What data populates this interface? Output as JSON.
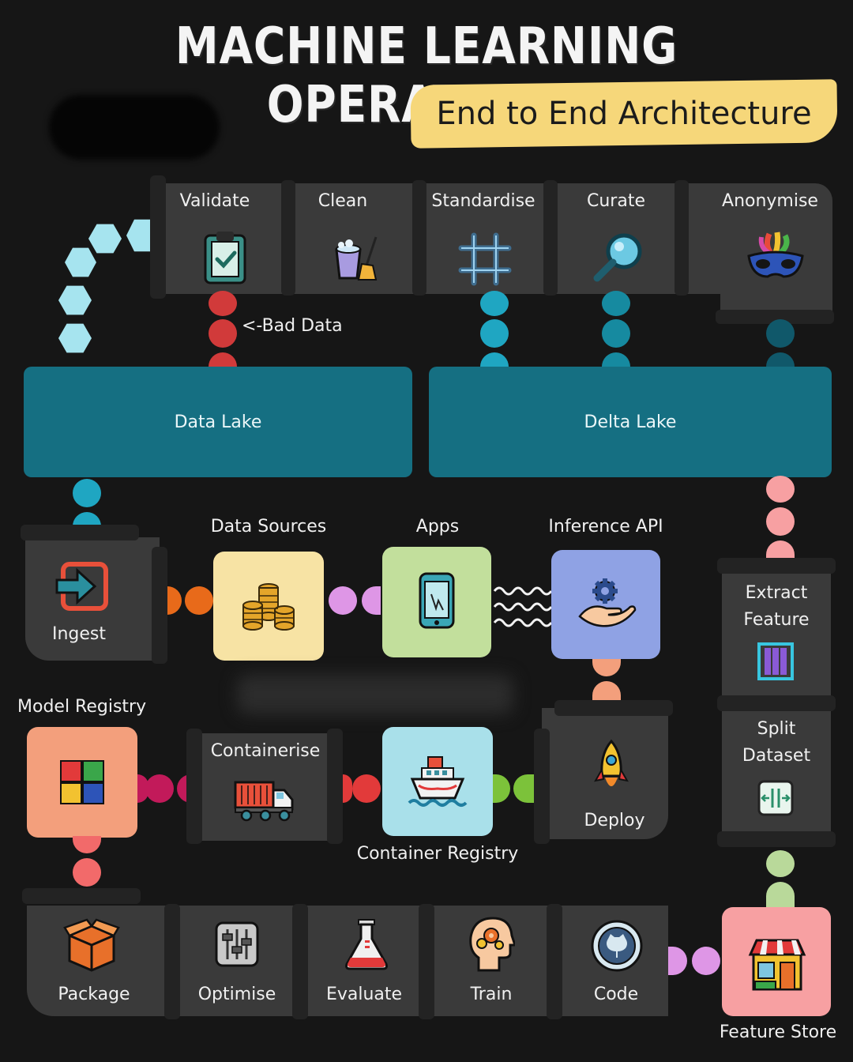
{
  "title": "MACHINE LEARNING OPERATIONS",
  "subtitle": "End to End Architecture",
  "pipeline": {
    "prep_steps": [
      {
        "label": "Validate",
        "icon": "clipboard-check-icon"
      },
      {
        "label": "Clean",
        "icon": "bucket-mop-icon"
      },
      {
        "label": "Standardise",
        "icon": "grid-hash-icon"
      },
      {
        "label": "Curate",
        "icon": "magnifier-icon"
      },
      {
        "label": "Anonymise",
        "icon": "carnival-mask-icon"
      }
    ],
    "bad_data_label": "<-Bad Data",
    "data_lake": "Data Lake",
    "delta_lake": "Delta Lake",
    "ingest": {
      "label": "Ingest",
      "icon": "import-arrow-icon"
    },
    "data_sources": {
      "label": "Data Sources",
      "icon": "coins-icon"
    },
    "apps": {
      "label": "Apps",
      "icon": "smartphone-icon"
    },
    "inference_api": {
      "label": "Inference API",
      "icon": "hand-gear-icon"
    },
    "extract_feature": {
      "label_line1": "Extract",
      "label_line2": "Feature",
      "icon": "columns-icon"
    },
    "split_dataset": {
      "label_line1": "Split",
      "label_line2": "Dataset",
      "icon": "split-arrows-icon"
    },
    "model_registry": {
      "label": "Model Registry",
      "icon": "color-blocks-icon"
    },
    "containerise": {
      "label": "Containerise",
      "icon": "container-truck-icon"
    },
    "container_registry": {
      "label": "Container Registry",
      "icon": "cargo-ship-icon"
    },
    "deploy": {
      "label": "Deploy",
      "icon": "rocket-icon"
    },
    "train_steps": [
      {
        "label": "Package",
        "icon": "box-icon"
      },
      {
        "label": "Optimise",
        "icon": "sliders-icon"
      },
      {
        "label": "Evaluate",
        "icon": "flask-icon"
      },
      {
        "label": "Train",
        "icon": "head-gears-icon"
      },
      {
        "label": "Code",
        "icon": "github-icon"
      }
    ],
    "feature_store": {
      "label": "Feature Store",
      "icon": "storefront-icon"
    }
  },
  "colors": {
    "background": "#161616",
    "track": "#3a3a3a",
    "lake": "#156f82",
    "subtitle_highlight": "#f6d77a",
    "data_sources_card": "#f7e3a4",
    "apps_card": "#c2df9c",
    "inference_card": "#8fa2e4",
    "model_registry_card": "#f39f7c",
    "container_registry_card": "#a9e0ea",
    "feature_store_card": "#f7a0a2"
  }
}
